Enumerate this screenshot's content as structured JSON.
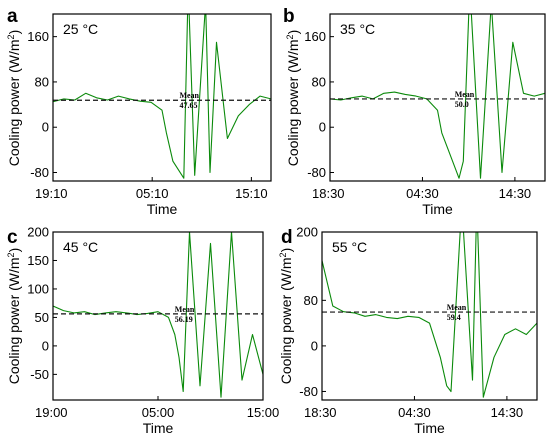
{
  "colors": {
    "series": "#0b8a0b",
    "mean_line": "#111111",
    "frame": "#000000"
  },
  "chart_data": [
    {
      "type": "line",
      "panel_label": "a",
      "temperature_label": "25 °C",
      "xlabel": "Time",
      "ylabel": "Cooling power (W/m",
      "ylabel_sup": "2",
      "ylabel_close": ")",
      "ylim": [
        -95,
        200
      ],
      "yticks": [
        {
          "value": 160,
          "label": "160"
        },
        {
          "value": 80,
          "label": "80"
        },
        {
          "value": 0,
          "label": "0"
        },
        {
          "value": -80,
          "label": "-80"
        }
      ],
      "xticks": [
        {
          "value": 0,
          "label": "19:10"
        },
        {
          "value": 0.455,
          "label": "05:10"
        },
        {
          "value": 0.91,
          "label": "15:10"
        }
      ],
      "mean": {
        "label": "Mean",
        "value_label": "47.65",
        "value": 47.65
      },
      "series": [
        {
          "x": [
            0,
            0.05,
            0.1,
            0.15,
            0.2,
            0.25,
            0.3,
            0.35,
            0.4,
            0.45,
            0.5,
            0.52,
            0.55,
            0.6,
            0.62,
            0.65,
            0.7,
            0.72,
            0.75,
            0.8,
            0.85,
            0.9,
            0.95,
            1
          ],
          "values": [
            45,
            50,
            48,
            60,
            52,
            48,
            55,
            50,
            46,
            44,
            30,
            -10,
            -60,
            -90,
            250,
            -85,
            220,
            -80,
            150,
            -20,
            20,
            40,
            55,
            50
          ]
        }
      ]
    },
    {
      "type": "line",
      "panel_label": "b",
      "temperature_label": "35 °C",
      "xlabel": "Time",
      "ylabel": "Cooling power (W/m",
      "ylabel_sup": "2",
      "ylabel_close": ")",
      "ylim": [
        -95,
        200
      ],
      "yticks": [
        {
          "value": 160,
          "label": "160"
        },
        {
          "value": 80,
          "label": "80"
        },
        {
          "value": 0,
          "label": "0"
        },
        {
          "value": -80,
          "label": "-80"
        }
      ],
      "xticks": [
        {
          "value": 0,
          "label": "18:30"
        },
        {
          "value": 0.43,
          "label": "04:30"
        },
        {
          "value": 0.86,
          "label": "14:30"
        }
      ],
      "mean": {
        "label": "Mean",
        "value_label": "50.0",
        "value": 50.0
      },
      "series": [
        {
          "x": [
            0,
            0.05,
            0.1,
            0.15,
            0.2,
            0.25,
            0.3,
            0.35,
            0.4,
            0.45,
            0.5,
            0.52,
            0.55,
            0.58,
            0.6,
            0.62,
            0.65,
            0.7,
            0.75,
            0.8,
            0.85,
            0.9,
            0.95,
            1
          ],
          "values": [
            50,
            48,
            52,
            55,
            50,
            60,
            62,
            58,
            55,
            50,
            30,
            -10,
            -40,
            -70,
            -90,
            -60,
            250,
            -90,
            220,
            -80,
            150,
            60,
            55,
            60
          ]
        }
      ]
    },
    {
      "type": "line",
      "panel_label": "c",
      "temperature_label": "45 °C",
      "xlabel": "Time",
      "ylabel": "Cooling power (W/m",
      "ylabel_sup": "2",
      "ylabel_close": ")",
      "ylim": [
        -95,
        200
      ],
      "yticks": [
        {
          "value": 200,
          "label": "200"
        },
        {
          "value": 150,
          "label": "150"
        },
        {
          "value": 100,
          "label": "100"
        },
        {
          "value": 50,
          "label": "50"
        },
        {
          "value": 0,
          "label": "0"
        },
        {
          "value": -50,
          "label": "-50"
        }
      ],
      "xticks": [
        {
          "value": 0,
          "label": "19:00"
        },
        {
          "value": 0.5,
          "label": "05:00"
        },
        {
          "value": 1,
          "label": "15:00"
        }
      ],
      "mean": {
        "label": "Mean",
        "value_label": "56.19",
        "value": 56.19
      },
      "series": [
        {
          "x": [
            0,
            0.05,
            0.1,
            0.15,
            0.2,
            0.25,
            0.3,
            0.35,
            0.4,
            0.45,
            0.5,
            0.55,
            0.58,
            0.6,
            0.62,
            0.65,
            0.7,
            0.75,
            0.8,
            0.85,
            0.9,
            0.95,
            1
          ],
          "values": [
            70,
            62,
            58,
            60,
            55,
            58,
            60,
            58,
            55,
            57,
            60,
            50,
            20,
            -20,
            -80,
            200,
            -70,
            180,
            -90,
            200,
            -60,
            20,
            -50
          ]
        }
      ]
    },
    {
      "type": "line",
      "panel_label": "d",
      "temperature_label": "55 °C",
      "xlabel": "Time",
      "ylabel": "Cooling power (W/m",
      "ylabel_sup": "2",
      "ylabel_close": ")",
      "ylim": [
        -95,
        200
      ],
      "yticks": [
        {
          "value": 200,
          "label": "200"
        },
        {
          "value": 80,
          "label": "80"
        },
        {
          "value": 0,
          "label": "0"
        },
        {
          "value": -80,
          "label": "-80"
        }
      ],
      "xticks": [
        {
          "value": 0,
          "label": "18:30"
        },
        {
          "value": 0.43,
          "label": "04:30"
        },
        {
          "value": 0.86,
          "label": "14:30"
        }
      ],
      "mean": {
        "label": "Mean",
        "value_label": "59.4",
        "value": 59.4
      },
      "series": [
        {
          "x": [
            0,
            0.05,
            0.1,
            0.15,
            0.2,
            0.25,
            0.3,
            0.35,
            0.4,
            0.45,
            0.5,
            0.55,
            0.58,
            0.6,
            0.65,
            0.7,
            0.72,
            0.75,
            0.8,
            0.85,
            0.9,
            0.95,
            1
          ],
          "values": [
            150,
            70,
            60,
            58,
            52,
            55,
            50,
            48,
            52,
            50,
            40,
            -20,
            -70,
            -80,
            250,
            -60,
            250,
            -90,
            -20,
            20,
            30,
            20,
            40
          ]
        }
      ]
    }
  ]
}
